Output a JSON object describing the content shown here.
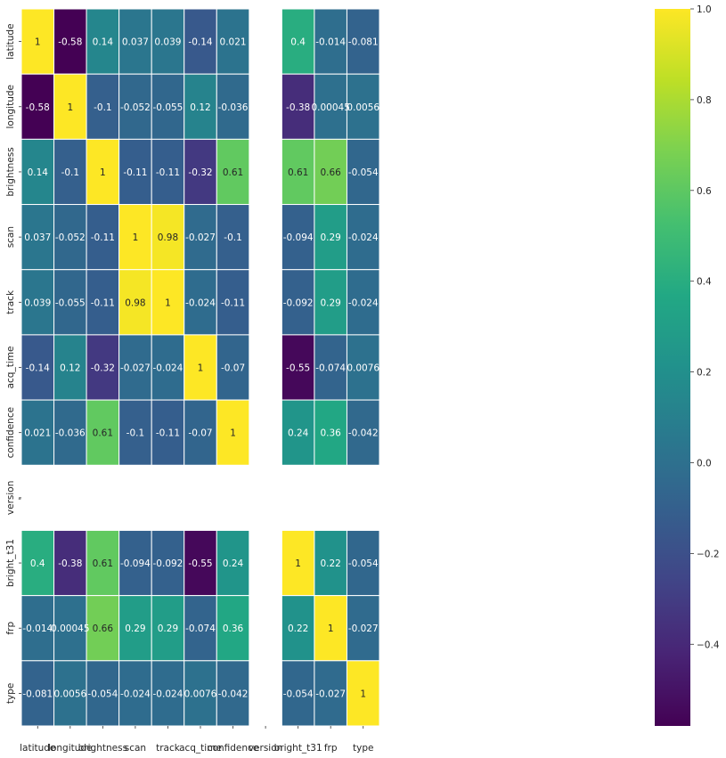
{
  "chart_data": {
    "type": "heatmap",
    "labels": [
      "latitude",
      "longitude",
      "brightness",
      "scan",
      "track",
      "acq_time",
      "confidence",
      "version",
      "bright_t31",
      "frp",
      "type"
    ],
    "matrix": [
      [
        1,
        -0.58,
        0.14,
        0.037,
        0.039,
        -0.14,
        0.021,
        null,
        0.4,
        -0.014,
        -0.081
      ],
      [
        -0.58,
        1,
        -0.1,
        -0.052,
        -0.055,
        0.12,
        -0.036,
        null,
        -0.38,
        0.00045,
        0.0056
      ],
      [
        0.14,
        -0.1,
        1,
        -0.11,
        -0.11,
        -0.32,
        0.61,
        null,
        0.61,
        0.66,
        -0.054
      ],
      [
        0.037,
        -0.052,
        -0.11,
        1,
        0.98,
        -0.027,
        -0.1,
        null,
        -0.094,
        0.29,
        -0.024
      ],
      [
        0.039,
        -0.055,
        -0.11,
        0.98,
        1,
        -0.024,
        -0.11,
        null,
        -0.092,
        0.29,
        -0.024
      ],
      [
        -0.14,
        0.12,
        -0.32,
        -0.027,
        -0.024,
        1,
        -0.07,
        null,
        -0.55,
        -0.074,
        0.0076
      ],
      [
        0.021,
        -0.036,
        0.61,
        -0.1,
        -0.11,
        -0.07,
        1,
        null,
        0.24,
        0.36,
        -0.042
      ],
      [
        null,
        null,
        null,
        null,
        null,
        null,
        null,
        null,
        null,
        null,
        null
      ],
      [
        0.4,
        -0.38,
        0.61,
        -0.094,
        -0.092,
        -0.55,
        0.24,
        null,
        1,
        0.22,
        -0.054
      ],
      [
        -0.014,
        0.00045,
        0.66,
        0.29,
        0.29,
        -0.074,
        0.36,
        null,
        0.22,
        1,
        -0.027
      ],
      [
        -0.081,
        0.0056,
        -0.054,
        -0.024,
        -0.024,
        0.0076,
        -0.042,
        null,
        -0.054,
        -0.027,
        1
      ]
    ],
    "cell_labels": [
      [
        "1",
        "-0.58",
        "0.14",
        "0.037",
        "0.039",
        "-0.14",
        "0.021",
        "",
        "0.4",
        "-0.014",
        "-0.081"
      ],
      [
        "-0.58",
        "1",
        "-0.1",
        "-0.052",
        "-0.055",
        "0.12",
        "-0.036",
        "",
        "-0.38",
        "0.00045",
        "0.0056"
      ],
      [
        "0.14",
        "-0.1",
        "1",
        "-0.11",
        "-0.11",
        "-0.32",
        "0.61",
        "",
        "0.61",
        "0.66",
        "-0.054"
      ],
      [
        "0.037",
        "-0.052",
        "-0.11",
        "1",
        "0.98",
        "-0.027",
        "-0.1",
        "",
        "-0.094",
        "0.29",
        "-0.024"
      ],
      [
        "0.039",
        "-0.055",
        "-0.11",
        "0.98",
        "1",
        "-0.024",
        "-0.11",
        "",
        "-0.092",
        "0.29",
        "-0.024"
      ],
      [
        "-0.14",
        "0.12",
        "-0.32",
        "-0.027",
        "-0.024",
        "1",
        "-0.07",
        "",
        "-0.55",
        "-0.074",
        "0.0076"
      ],
      [
        "0.021",
        "-0.036",
        "0.61",
        "-0.1",
        "-0.11",
        "-0.07",
        "1",
        "",
        "0.24",
        "0.36",
        "-0.042"
      ],
      [
        "",
        "",
        "",
        "",
        "",
        "",
        "",
        "",
        "",
        "",
        ""
      ],
      [
        "0.4",
        "-0.38",
        "0.61",
        "-0.094",
        "-0.092",
        "-0.55",
        "0.24",
        "",
        "1",
        "0.22",
        "-0.054"
      ],
      [
        "-0.014",
        "0.00045",
        "0.66",
        "0.29",
        "0.29",
        "-0.074",
        "0.36",
        "",
        "0.22",
        "1",
        "-0.027"
      ],
      [
        "-0.081",
        "0.0056",
        "-0.054",
        "-0.024",
        "-0.024",
        "0.0076",
        "-0.042",
        "",
        "-0.054",
        "-0.027",
        "1"
      ]
    ],
    "missing_row_tick": "-",
    "colormap": "viridis",
    "vmin": -0.58,
    "vmax": 1,
    "colorbar": {
      "ticks": [
        1.0,
        0.8,
        0.6,
        0.4,
        0.2,
        0.0,
        -0.2,
        -0.4
      ],
      "tick_labels": [
        "1.0",
        "0.8",
        "0.6",
        "0.4",
        "0.2",
        "0.0",
        "−0.2",
        "−0.4"
      ]
    },
    "grid": true,
    "grid_color": "#ffffff"
  }
}
